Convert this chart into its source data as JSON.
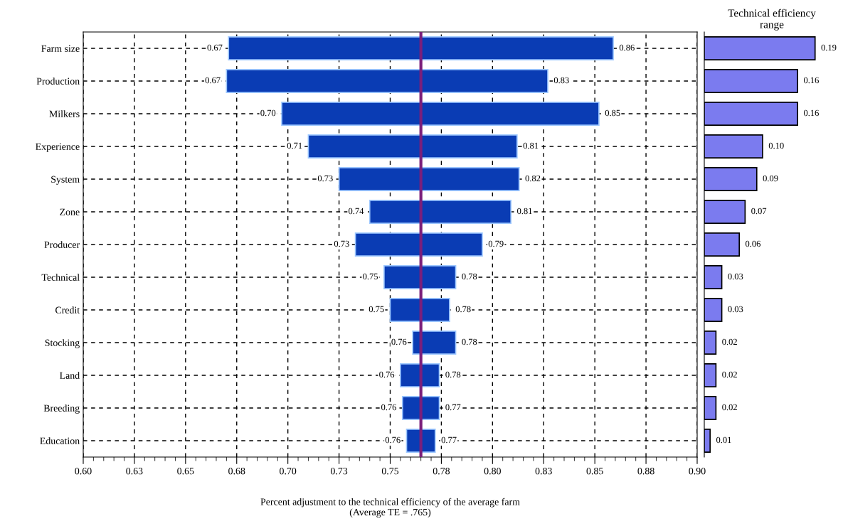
{
  "chart_data": [
    {
      "type": "bar",
      "orientation": "horizontal",
      "xlabel": "Percent adjustment to the technical efficiency of the average farm\n(Average TE = .765)",
      "categories": [
        "Farm size",
        "Production",
        "Milkers",
        "Experience",
        "System",
        "Zone",
        "Producer",
        "Technical",
        "Credit",
        "Stocking",
        "Land",
        "Breeding",
        "Education"
      ],
      "base": [
        0.671,
        0.67,
        0.697,
        0.71,
        0.725,
        0.74,
        0.733,
        0.747,
        0.75,
        0.761,
        0.755,
        0.756,
        0.758
      ],
      "values": [
        0.188,
        0.157,
        0.155,
        0.102,
        0.088,
        0.069,
        0.062,
        0.035,
        0.029,
        0.021,
        0.019,
        0.018,
        0.014
      ],
      "color": "#0a3cb4",
      "annotations": [
        {
          "text": "0.67",
          "x": 0.671,
          "y": "Farm size"
        },
        {
          "text": "0.86",
          "x": 0.859,
          "y": "Farm size"
        },
        {
          "text": "0.67",
          "x": 0.67,
          "y": "Production"
        },
        {
          "text": "0.83",
          "x": 0.827,
          "y": "Production"
        },
        {
          "text": "0.70",
          "x": 0.697,
          "y": "Milkers"
        },
        {
          "text": "0.85",
          "x": 0.852,
          "y": "Milkers"
        },
        {
          "text": "0.71",
          "x": 0.71,
          "y": "Experience"
        },
        {
          "text": "0.81",
          "x": 0.812,
          "y": "Experience"
        },
        {
          "text": "0.73",
          "x": 0.725,
          "y": "System"
        },
        {
          "text": "0.82",
          "x": 0.813,
          "y": "System"
        },
        {
          "text": "0.74",
          "x": 0.74,
          "y": "Zone"
        },
        {
          "text": "0.81",
          "x": 0.809,
          "y": "Zone"
        },
        {
          "text": "0.73",
          "x": 0.733,
          "y": "Producer"
        },
        {
          "text": "0.79",
          "x": 0.795,
          "y": "Producer"
        },
        {
          "text": "0.75",
          "x": 0.747,
          "y": "Technical"
        },
        {
          "text": "0.78",
          "x": 0.782,
          "y": "Technical"
        },
        {
          "text": "0.75",
          "x": 0.75,
          "y": "Credit"
        },
        {
          "text": "0.78",
          "x": 0.779,
          "y": "Credit"
        },
        {
          "text": "0.76",
          "x": 0.761,
          "y": "Stocking"
        },
        {
          "text": "0.78",
          "x": 0.782,
          "y": "Stocking"
        },
        {
          "text": "0.76",
          "x": 0.755,
          "y": "Land"
        },
        {
          "text": "0.78",
          "x": 0.774,
          "y": "Land"
        },
        {
          "text": "0.76",
          "x": 0.756,
          "y": "Breeding"
        },
        {
          "text": "0.77",
          "x": 0.774,
          "y": "Breeding"
        },
        {
          "text": "0.76",
          "x": 0.758,
          "y": "Education"
        },
        {
          "text": "0.77",
          "x": 0.772,
          "y": "Education"
        }
      ],
      "xlim": [
        0.6,
        0.9
      ],
      "xticks": [
        {
          "value": 0.6,
          "label": "0.60"
        },
        {
          "value": 0.625,
          "label": "0.63"
        },
        0.65,
        {
          "value": 0.675,
          "label": "0.68"
        },
        {
          "value": 0.7,
          "label": "0.70"
        },
        {
          "value": 0.725,
          "label": "0.73"
        },
        0.75,
        {
          "value": 0.775,
          "label": "0.78"
        },
        {
          "value": 0.8,
          "label": "0.80"
        },
        {
          "value": 0.825,
          "label": "0.83"
        },
        0.85,
        {
          "value": 0.875,
          "label": "0.88"
        },
        {
          "value": 0.9,
          "label": "0.90"
        }
      ],
      "ref_lines": [
        {
          "axis": "x",
          "value": 0.765,
          "color": "#7b1f7b"
        }
      ],
      "grid": true,
      "line_style": "dashed"
    },
    {
      "type": "bar",
      "orientation": "horizontal",
      "title": "Technical efficiency\nrange",
      "categories": [
        null,
        null,
        null,
        null,
        null,
        null,
        null,
        null,
        null,
        null,
        null,
        null,
        null
      ],
      "values": [
        0.19,
        0.16,
        0.16,
        0.1,
        0.09,
        0.07,
        0.06,
        0.03,
        0.03,
        0.02,
        0.02,
        0.02,
        0.01
      ],
      "value_labels": [
        "0.19",
        "0.16",
        "0.16",
        "0.10",
        "0.09",
        "0.07",
        "0.06",
        "0.03",
        "0.03",
        "0.02",
        "0.02",
        "0.02",
        "0.01"
      ],
      "color": "#7b7bef",
      "tick_labels": false
    }
  ]
}
